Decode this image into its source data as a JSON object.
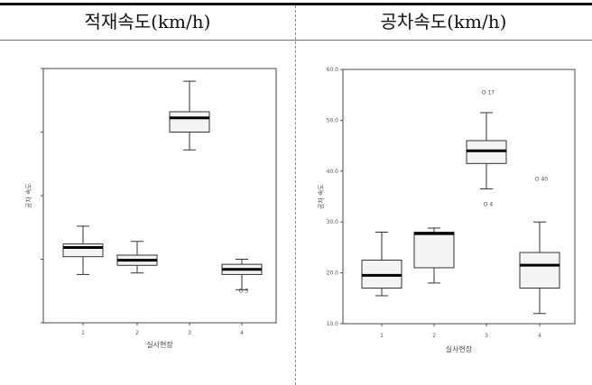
{
  "headers": {
    "left": "적재속도(km/h)",
    "right": "공차속도(km/h)"
  },
  "chart_data": [
    {
      "type": "box",
      "title": "적재속도(km/h)",
      "xlabel": "실사현장",
      "ylabel": "공차 속도",
      "categories": [
        "1",
        "2",
        "3",
        "4"
      ],
      "yticks": [
        "",
        "",
        "",
        "",
        ""
      ],
      "ylim": [
        10,
        60
      ],
      "boxes": [
        {
          "category": "1",
          "min": 19.5,
          "q1": 23.0,
          "median": 24.8,
          "q3": 25.5,
          "max": 29.0
        },
        {
          "category": "2",
          "min": 19.8,
          "q1": 21.3,
          "median": 22.3,
          "q3": 23.3,
          "max": 26.0
        },
        {
          "category": "3",
          "min": 44.0,
          "q1": 47.5,
          "median": 50.3,
          "q3": 51.5,
          "max": 57.5
        },
        {
          "category": "4",
          "min": 16.5,
          "q1": 19.5,
          "median": 20.5,
          "q3": 21.5,
          "max": 22.5
        }
      ],
      "outliers": [
        {
          "category": "4",
          "value": 16.3,
          "label": "O 5"
        }
      ]
    },
    {
      "type": "box",
      "title": "공차속도(km/h)",
      "xlabel": "실사현장",
      "ylabel": "공차 속도",
      "categories": [
        "1",
        "2",
        "3",
        "4"
      ],
      "yticks": [
        "60.0",
        "50.0",
        "40.0",
        "30.0",
        "20.0",
        "10.0"
      ],
      "ylim": [
        10,
        60
      ],
      "boxes": [
        {
          "category": "1",
          "min": 15.5,
          "q1": 17.0,
          "median": 19.5,
          "q3": 22.5,
          "max": 28.0
        },
        {
          "category": "2",
          "min": 18.0,
          "q1": 21.0,
          "median": 27.7,
          "q3": 28.0,
          "max": 28.8
        },
        {
          "category": "3",
          "min": 36.5,
          "q1": 41.5,
          "median": 44.0,
          "q3": 46.0,
          "max": 51.5
        },
        {
          "category": "4",
          "min": 12.0,
          "q1": 17.0,
          "median": 21.5,
          "q3": 24.0,
          "max": 30.0
        }
      ],
      "outliers": [
        {
          "category": "3",
          "value": 55.5,
          "label": "O 17"
        },
        {
          "category": "3",
          "value": 33.5,
          "label": "O 4"
        },
        {
          "category": "4",
          "value": 38.5,
          "label": "O 40"
        }
      ]
    }
  ]
}
